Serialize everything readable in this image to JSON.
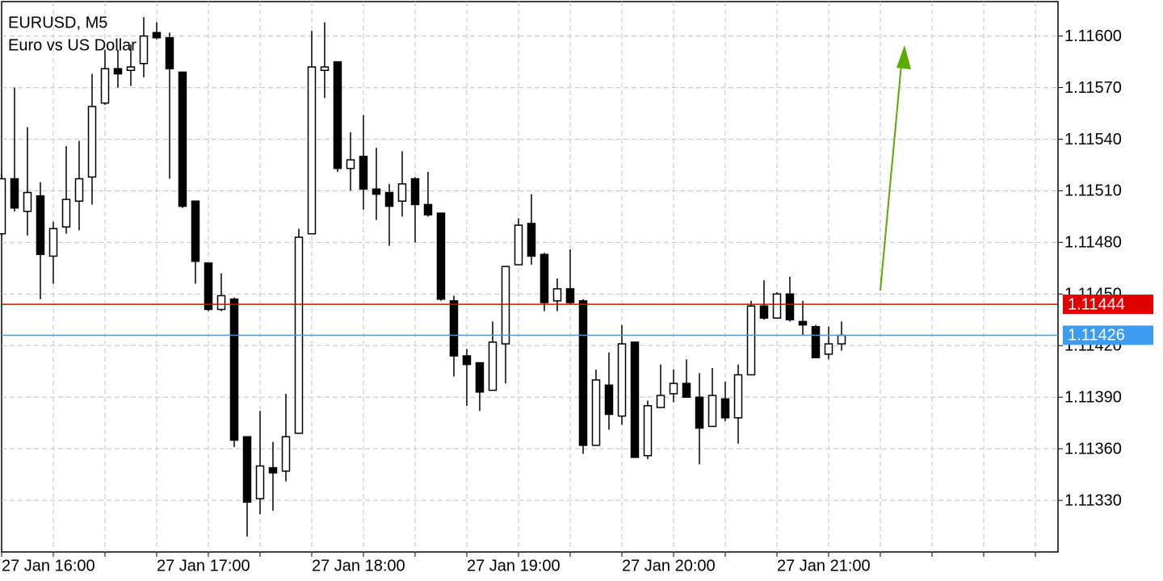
{
  "chart_data": {
    "type": "candlestick",
    "title": "EURUSD, M5",
    "subtitle": "Euro vs US Dollar",
    "categories": [
      "27 Jan 16:00",
      null,
      null,
      null,
      null,
      null,
      null,
      null,
      null,
      null,
      null,
      null,
      "27 Jan 17:00",
      null,
      null,
      null,
      null,
      null,
      null,
      null,
      null,
      null,
      null,
      null,
      "27 Jan 18:00",
      null,
      null,
      null,
      null,
      null,
      null,
      null,
      null,
      null,
      null,
      null,
      "27 Jan 19:00",
      null,
      null,
      null,
      null,
      null,
      null,
      null,
      null,
      null,
      null,
      null,
      "27 Jan 20:00",
      null,
      null,
      null,
      null,
      null,
      null,
      null,
      null,
      null,
      null,
      null,
      "27 Jan 21:00",
      null,
      null,
      null,
      null,
      null
    ],
    "open": [
      1.11485,
      1.11517,
      1.11498,
      1.11507,
      1.11472,
      1.11489,
      1.11504,
      1.11518,
      1.11561,
      1.11581,
      1.1158,
      1.11584,
      1.11602,
      1.11599,
      1.11579,
      1.11504,
      1.11468,
      1.11441,
      1.11447,
      1.11367,
      1.11331,
      1.11349,
      1.11347,
      1.11369,
      1.11485,
      1.1158,
      1.11585,
      1.11523,
      1.1153,
      1.11511,
      1.11509,
      1.11504,
      1.11517,
      1.11502,
      1.11497,
      1.11446,
      1.11414,
      1.1141,
      1.11394,
      1.11421,
      1.11467,
      1.11491,
      1.11473,
      1.11446,
      1.11453,
      1.11446,
      1.11362,
      1.11397,
      1.11379,
      1.11422,
      1.11356,
      1.11384,
      1.11392,
      1.11398,
      1.1139,
      1.11373,
      1.11389,
      1.11378,
      1.11403,
      1.11443,
      1.11436,
      1.1145,
      1.11434,
      1.11431,
      1.11415,
      1.11421
    ],
    "high": [
      1.1152,
      1.1157,
      1.11547,
      1.11515,
      1.11492,
      1.11536,
      1.11539,
      1.11578,
      1.11592,
      1.11592,
      1.11595,
      1.11611,
      1.11608,
      1.11602,
      1.11579,
      1.11504,
      1.11468,
      1.11462,
      1.11448,
      1.11367,
      1.11382,
      1.11364,
      1.11392,
      1.11488,
      1.11603,
      1.11608,
      1.11585,
      1.11544,
      1.11554,
      1.11535,
      1.11514,
      1.11533,
      1.11518,
      1.11521,
      1.11497,
      1.11449,
      1.11418,
      1.1141,
      1.11434,
      1.11466,
      1.11494,
      1.11508,
      1.11474,
      1.11459,
      1.11476,
      1.11447,
      1.11406,
      1.11416,
      1.11432,
      1.11422,
      1.11388,
      1.11409,
      1.11406,
      1.11412,
      1.11404,
      1.11407,
      1.11399,
      1.11409,
      1.11446,
      1.11458,
      1.11451,
      1.1146,
      1.11446,
      1.11432,
      1.11431,
      1.11434
    ],
    "low": [
      1.11484,
      1.11498,
      1.11484,
      1.11447,
      1.11456,
      1.11485,
      1.11487,
      1.11502,
      1.1156,
      1.1157,
      1.11571,
      1.11576,
      1.11598,
      1.11517,
      1.115,
      1.11456,
      1.1144,
      1.1144,
      1.11361,
      1.11309,
      1.11322,
      1.11324,
      1.11341,
      1.11369,
      1.11485,
      1.11564,
      1.11521,
      1.1151,
      1.11499,
      1.11493,
      1.11478,
      1.11495,
      1.1148,
      1.11495,
      1.11446,
      1.11402,
      1.11385,
      1.11382,
      1.11394,
      1.11398,
      1.11467,
      1.11467,
      1.1144,
      1.1144,
      1.11444,
      1.11357,
      1.11362,
      1.11371,
      1.11374,
      1.11355,
      1.11354,
      1.11384,
      1.11387,
      1.1139,
      1.11351,
      1.11373,
      1.11376,
      1.11363,
      1.11403,
      1.11435,
      1.11436,
      1.11434,
      1.11426,
      1.11413,
      1.11412,
      1.11417
    ],
    "close": [
      1.11517,
      1.115,
      1.11509,
      1.11473,
      1.11488,
      1.11505,
      1.11517,
      1.11559,
      1.11581,
      1.11578,
      1.11582,
      1.116,
      1.11599,
      1.11581,
      1.11501,
      1.11469,
      1.11441,
      1.11449,
      1.11365,
      1.11329,
      1.1135,
      1.11346,
      1.11367,
      1.11483,
      1.11582,
      1.11582,
      1.11523,
      1.11528,
      1.11511,
      1.11508,
      1.11501,
      1.11514,
      1.11502,
      1.11496,
      1.11447,
      1.11414,
      1.11409,
      1.11393,
      1.11422,
      1.11466,
      1.1149,
      1.11472,
      1.11445,
      1.11453,
      1.11445,
      1.11362,
      1.114,
      1.1138,
      1.11421,
      1.11355,
      1.11385,
      1.11391,
      1.11398,
      1.1139,
      1.11372,
      1.11391,
      1.11378,
      1.11403,
      1.11443,
      1.11436,
      1.1145,
      1.11435,
      1.11432,
      1.11413,
      1.11421,
      1.11426
    ],
    "up_color": "#ffffff",
    "down_color": "#000000",
    "ylim": [
      1.113,
      1.1162
    ],
    "yticks": [
      {
        "value": 1.1133,
        "label": "1.11330"
      },
      {
        "value": 1.1136,
        "label": "1.11360"
      },
      {
        "value": 1.1139,
        "label": "1.11390"
      },
      {
        "value": 1.1142,
        "label": "1.11420"
      },
      {
        "value": 1.1145,
        "label": "1.11450"
      },
      {
        "value": 1.1148,
        "label": "1.11480"
      },
      {
        "value": 1.1151,
        "label": "1.11510"
      },
      {
        "value": 1.1154,
        "label": "1.11540"
      },
      {
        "value": 1.1157,
        "label": "1.11570"
      },
      {
        "value": 1.116,
        "label": "1.11600"
      }
    ],
    "grid": true,
    "price_lines": [
      {
        "value": 1.11444,
        "label": "1.11444",
        "color": "#e00000"
      },
      {
        "value": 1.11426,
        "label": "1.11426",
        "color": "#3d9cf0"
      }
    ]
  }
}
